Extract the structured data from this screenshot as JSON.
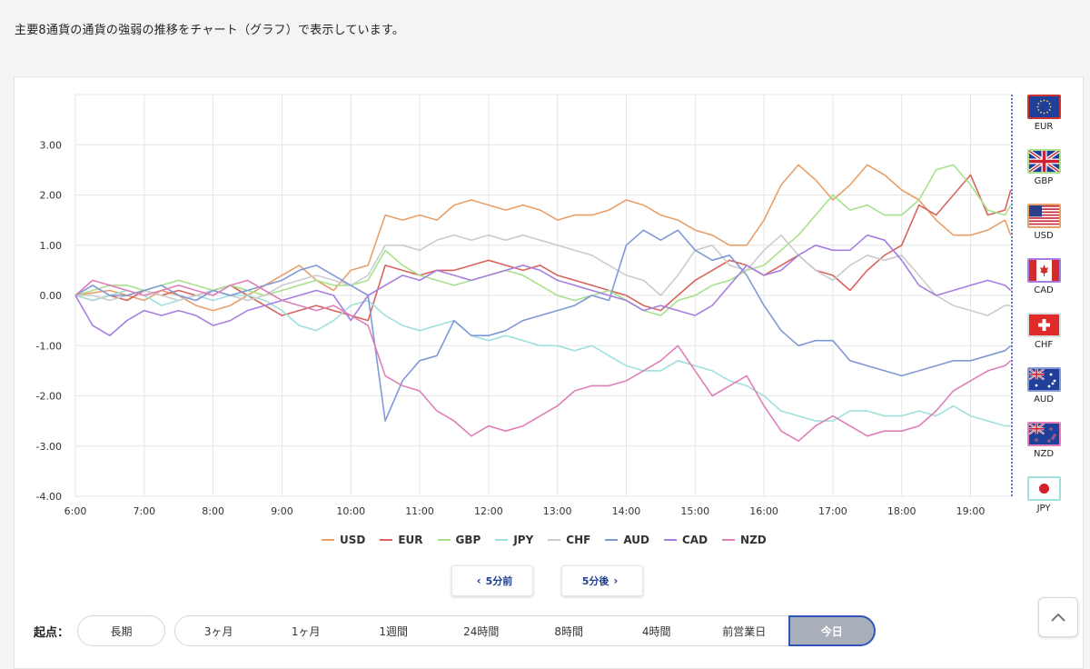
{
  "intro_text": "主要8通貨の通貨の強弱の推移をチャート（グラフ）で表示しています。",
  "chart_data": {
    "type": "line",
    "x": [
      "6:00",
      "6:15",
      "6:30",
      "6:45",
      "7:00",
      "7:15",
      "7:30",
      "7:45",
      "8:00",
      "8:15",
      "8:30",
      "8:45",
      "9:00",
      "9:15",
      "9:30",
      "9:45",
      "10:00",
      "10:15",
      "10:30",
      "10:45",
      "11:00",
      "11:15",
      "11:30",
      "11:45",
      "12:00",
      "12:15",
      "12:30",
      "12:45",
      "13:00",
      "13:15",
      "13:30",
      "13:45",
      "14:00",
      "14:15",
      "14:30",
      "14:45",
      "15:00",
      "15:15",
      "15:30",
      "15:45",
      "16:00",
      "16:15",
      "16:30",
      "16:45",
      "17:00",
      "17:15",
      "17:30",
      "17:45",
      "18:00",
      "18:15",
      "18:30",
      "18:45",
      "19:00",
      "19:15",
      "19:30",
      "19:35"
    ],
    "x_ticks": [
      "6:00",
      "7:00",
      "8:00",
      "9:00",
      "10:00",
      "11:00",
      "12:00",
      "13:00",
      "14:00",
      "15:00",
      "16:00",
      "17:00",
      "18:00",
      "19:00"
    ],
    "y_ticks": [
      "3.00",
      "2.00",
      "1.00",
      "0.00",
      "-1.00",
      "-2.00",
      "-3.00",
      "-4.00"
    ],
    "ylim": [
      -4.0,
      4.0
    ],
    "xlim_hours": [
      6.0,
      19.6
    ],
    "grid": true,
    "legend_position": "bottom",
    "series": [
      {
        "name": "USD",
        "color": "#e8a06a",
        "values": [
          0,
          0.05,
          0.1,
          0,
          -0.1,
          0.1,
          0,
          -0.2,
          -0.3,
          -0.2,
          0,
          0.2,
          0.4,
          0.6,
          0.3,
          0.1,
          0.5,
          0.6,
          1.6,
          1.5,
          1.6,
          1.5,
          1.8,
          1.9,
          1.8,
          1.7,
          1.8,
          1.7,
          1.5,
          1.6,
          1.6,
          1.7,
          1.9,
          1.8,
          1.6,
          1.5,
          1.3,
          1.2,
          1.0,
          1.0,
          1.5,
          2.2,
          2.6,
          2.3,
          1.9,
          2.2,
          2.6,
          2.4,
          2.1,
          1.9,
          1.5,
          1.2,
          1.2,
          1.3,
          1.5,
          1.2
        ]
      },
      {
        "name": "EUR",
        "color": "#d8645d",
        "values": [
          0,
          -0.1,
          0,
          -0.1,
          0.1,
          0,
          0.1,
          0,
          0.1,
          0.2,
          0,
          -0.2,
          -0.4,
          -0.3,
          -0.2,
          -0.3,
          -0.4,
          -0.5,
          0.6,
          0.5,
          0.4,
          0.5,
          0.5,
          0.6,
          0.7,
          0.6,
          0.5,
          0.6,
          0.4,
          0.3,
          0.2,
          0.1,
          0,
          -0.2,
          -0.3,
          0,
          0.3,
          0.5,
          0.7,
          0.6,
          0.4,
          0.6,
          0.8,
          0.5,
          0.4,
          0.1,
          0.5,
          0.8,
          1.0,
          1.8,
          1.6,
          2.0,
          2.4,
          1.6,
          1.7,
          2.1
        ]
      },
      {
        "name": "GBP",
        "color": "#a6e28c",
        "values": [
          0,
          0.1,
          0.2,
          0.2,
          0.1,
          0.2,
          0.3,
          0.2,
          0.1,
          0.2,
          0.1,
          0,
          0.1,
          0.2,
          0.3,
          0.2,
          0.2,
          0.3,
          0.9,
          0.6,
          0.4,
          0.3,
          0.2,
          0.3,
          0.4,
          0.5,
          0.4,
          0.2,
          0,
          -0.1,
          0,
          0.1,
          -0.1,
          -0.3,
          -0.4,
          -0.1,
          0,
          0.2,
          0.3,
          0.5,
          0.6,
          0.9,
          1.2,
          1.6,
          2.0,
          1.7,
          1.8,
          1.6,
          1.6,
          1.9,
          2.5,
          2.6,
          2.2,
          1.7,
          1.6,
          1.8
        ]
      },
      {
        "name": "JPY",
        "color": "#9fe0dc",
        "values": [
          0,
          -0.1,
          0,
          0.1,
          0,
          -0.2,
          -0.1,
          0,
          -0.1,
          0,
          0,
          -0.1,
          -0.3,
          -0.6,
          -0.7,
          -0.5,
          -0.2,
          -0.1,
          -0.4,
          -0.6,
          -0.7,
          -0.6,
          -0.5,
          -0.8,
          -0.9,
          -0.8,
          -0.9,
          -1.0,
          -1.0,
          -1.1,
          -1.0,
          -1.2,
          -1.4,
          -1.5,
          -1.5,
          -1.3,
          -1.4,
          -1.5,
          -1.7,
          -1.8,
          -2.0,
          -2.3,
          -2.4,
          -2.5,
          -2.5,
          -2.3,
          -2.3,
          -2.4,
          -2.4,
          -2.3,
          -2.4,
          -2.2,
          -2.4,
          -2.5,
          -2.6,
          -2.6
        ]
      },
      {
        "name": "CHF",
        "color": "#cccccc",
        "values": [
          0,
          0,
          -0.1,
          0,
          0.1,
          0,
          -0.1,
          0,
          0.1,
          0,
          -0.1,
          0,
          0.2,
          0.3,
          0.4,
          0.3,
          0.2,
          0.4,
          1.0,
          1.0,
          0.9,
          1.1,
          1.2,
          1.1,
          1.2,
          1.1,
          1.2,
          1.1,
          1.0,
          0.9,
          0.8,
          0.6,
          0.4,
          0.3,
          0,
          0.4,
          0.9,
          1.0,
          0.6,
          0.5,
          0.9,
          1.2,
          0.8,
          0.5,
          0.3,
          0.6,
          0.8,
          0.7,
          0.8,
          0.4,
          0,
          -0.2,
          -0.3,
          -0.4,
          -0.2,
          -0.2
        ]
      },
      {
        "name": "AUD",
        "color": "#8098d6",
        "values": [
          0,
          0.2,
          0,
          0,
          0.1,
          0.2,
          0,
          -0.1,
          0.1,
          0,
          0.1,
          0.2,
          0.3,
          0.5,
          0.6,
          0.4,
          0.2,
          0,
          -2.5,
          -1.7,
          -1.3,
          -1.2,
          -0.5,
          -0.8,
          -0.8,
          -0.7,
          -0.5,
          -0.4,
          -0.3,
          -0.2,
          0,
          -0.1,
          1.0,
          1.3,
          1.1,
          1.3,
          0.9,
          0.7,
          0.8,
          0.4,
          -0.2,
          -0.7,
          -1.0,
          -0.9,
          -0.9,
          -1.3,
          -1.4,
          -1.5,
          -1.6,
          -1.5,
          -1.4,
          -1.3,
          -1.3,
          -1.2,
          -1.1,
          -1.0
        ]
      },
      {
        "name": "CAD",
        "color": "#a77ee0",
        "values": [
          0,
          -0.6,
          -0.8,
          -0.5,
          -0.3,
          -0.4,
          -0.3,
          -0.4,
          -0.6,
          -0.5,
          -0.3,
          -0.2,
          -0.1,
          0,
          0.1,
          0,
          -0.5,
          0,
          0.2,
          0.4,
          0.3,
          0.5,
          0.4,
          0.3,
          0.4,
          0.5,
          0.6,
          0.5,
          0.3,
          0.2,
          0.1,
          0,
          -0.1,
          -0.3,
          -0.2,
          -0.3,
          -0.4,
          -0.2,
          0.2,
          0.6,
          0.4,
          0.5,
          0.8,
          1.0,
          0.9,
          0.9,
          1.2,
          1.1,
          0.7,
          0.2,
          0,
          0.1,
          0.2,
          0.3,
          0.2,
          0.1
        ]
      },
      {
        "name": "NZD",
        "color": "#de7fb8",
        "values": [
          0,
          0.3,
          0.2,
          0.1,
          0,
          0.1,
          0.2,
          0.1,
          0,
          0.2,
          0.3,
          0.1,
          -0.1,
          -0.2,
          -0.3,
          -0.2,
          -0.4,
          -0.6,
          -1.6,
          -1.8,
          -1.9,
          -2.3,
          -2.5,
          -2.8,
          -2.6,
          -2.7,
          -2.6,
          -2.4,
          -2.2,
          -1.9,
          -1.8,
          -1.8,
          -1.7,
          -1.5,
          -1.3,
          -1.0,
          -1.5,
          -2.0,
          -1.8,
          -1.6,
          -2.2,
          -2.7,
          -2.9,
          -2.6,
          -2.4,
          -2.6,
          -2.8,
          -2.7,
          -2.7,
          -2.6,
          -2.3,
          -1.9,
          -1.7,
          -1.5,
          -1.4,
          -1.3
        ]
      }
    ]
  },
  "flags": [
    {
      "code": "EUR",
      "border": "#cc3333",
      "kind": "eu"
    },
    {
      "code": "GBP",
      "border": "#a6e28c",
      "kind": "uk"
    },
    {
      "code": "USD",
      "border": "#e8a06a",
      "kind": "us"
    },
    {
      "code": "CAD",
      "border": "#a77ee0",
      "kind": "ca"
    },
    {
      "code": "CHF",
      "border": "#dddddd",
      "kind": "ch"
    },
    {
      "code": "AUD",
      "border": "#8098d6",
      "kind": "au"
    },
    {
      "code": "NZD",
      "border": "#de7fb8",
      "kind": "nz"
    },
    {
      "code": "JPY",
      "border": "#9fe0dc",
      "kind": "jp"
    }
  ],
  "nav": {
    "prev_label": "5分前",
    "next_label": "5分後",
    "prev_chevron": "‹",
    "next_chevron": "›"
  },
  "range": {
    "label": "起点：",
    "long_label": "長期",
    "options": [
      "3ヶ月",
      "1ヶ月",
      "1週間",
      "24時間",
      "8時間",
      "4時間",
      "前営業日",
      "今日"
    ],
    "selected": "今日"
  },
  "colors": {
    "accent": "#2e56b8",
    "grid": "#e6e6e6",
    "selected_pill": "#a9afb9"
  }
}
